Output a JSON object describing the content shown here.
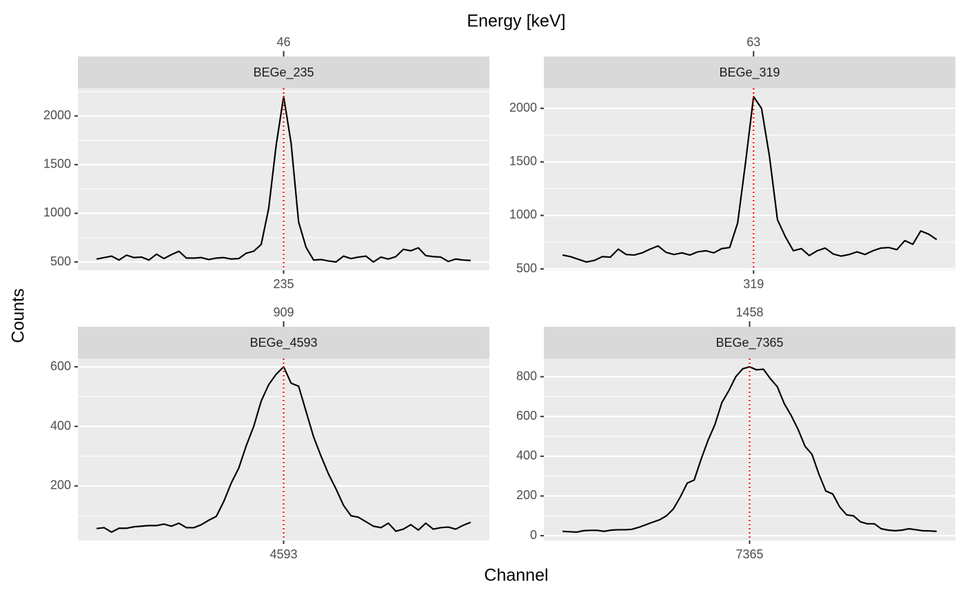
{
  "chart_data": {
    "type": "line",
    "x_label": "Channel",
    "y_label": "Counts",
    "x2_label": "Energy [keV]",
    "grid": true,
    "vline_color": "#ff0000",
    "panels": [
      {
        "title": "BEGe_235",
        "color": "#000000",
        "x": [
          210,
          211,
          212,
          213,
          214,
          215,
          216,
          217,
          218,
          219,
          220,
          221,
          222,
          223,
          224,
          225,
          226,
          227,
          228,
          229,
          230,
          231,
          232,
          233,
          234,
          235,
          236,
          237,
          238,
          239,
          240,
          241,
          242,
          243,
          244,
          245,
          246,
          247,
          248,
          249,
          250,
          251,
          252,
          253,
          254,
          255,
          256,
          257,
          258,
          259,
          260
        ],
        "values": [
          530,
          545,
          560,
          520,
          570,
          545,
          550,
          520,
          580,
          535,
          575,
          610,
          540,
          540,
          545,
          525,
          540,
          545,
          530,
          535,
          590,
          610,
          680,
          1050,
          1700,
          2200,
          1720,
          910,
          650,
          520,
          525,
          510,
          500,
          560,
          535,
          550,
          560,
          500,
          550,
          530,
          555,
          630,
          615,
          645,
          565,
          555,
          550,
          505,
          530,
          520,
          515
        ],
        "xlim": [
          207.5,
          262.5
        ],
        "ylim": [
          415,
          2285
        ],
        "yticks": [
          500,
          1000,
          1500,
          2000
        ],
        "xticks": [
          235
        ],
        "x2ticks": [
          46
        ]
      },
      {
        "title": "BEGe_319",
        "color": "#000000",
        "x": [
          295,
          296,
          297,
          298,
          299,
          300,
          301,
          302,
          303,
          304,
          305,
          306,
          307,
          308,
          309,
          310,
          311,
          312,
          313,
          314,
          315,
          316,
          317,
          318,
          319,
          320,
          321,
          322,
          323,
          324,
          325,
          326,
          327,
          328,
          329,
          330,
          331,
          332,
          333,
          334,
          335,
          336,
          337,
          338,
          339,
          340,
          341,
          342
        ],
        "values": [
          630,
          615,
          590,
          565,
          580,
          615,
          610,
          685,
          635,
          630,
          650,
          685,
          715,
          655,
          635,
          650,
          630,
          660,
          670,
          650,
          690,
          700,
          930,
          1500,
          2110,
          2000,
          1550,
          960,
          800,
          670,
          690,
          625,
          670,
          695,
          640,
          620,
          635,
          660,
          635,
          670,
          695,
          700,
          680,
          765,
          730,
          855,
          825,
          775
        ],
        "xlim": [
          292.65,
          344.35
        ],
        "ylim": [
          488,
          2188
        ],
        "yticks": [
          500,
          1000,
          1500,
          2000
        ],
        "xticks": [
          319
        ],
        "x2ticks": [
          63
        ]
      },
      {
        "title": "BEGe_4593",
        "color": "#000000",
        "x": [
          4568,
          4569,
          4570,
          4571,
          4572,
          4573,
          4574,
          4575,
          4576,
          4577,
          4578,
          4579,
          4580,
          4581,
          4582,
          4583,
          4584,
          4585,
          4586,
          4587,
          4588,
          4589,
          4590,
          4591,
          4592,
          4593,
          4594,
          4595,
          4596,
          4597,
          4598,
          4599,
          4600,
          4601,
          4602,
          4603,
          4604,
          4605,
          4606,
          4607,
          4608,
          4609,
          4610,
          4611,
          4612,
          4613,
          4614,
          4615,
          4616,
          4617,
          4618
        ],
        "values": [
          57,
          60,
          45,
          58,
          58,
          63,
          65,
          67,
          67,
          72,
          65,
          75,
          60,
          60,
          70,
          85,
          98,
          148,
          210,
          260,
          335,
          400,
          485,
          540,
          575,
          600,
          545,
          535,
          450,
          365,
          300,
          240,
          190,
          135,
          100,
          95,
          80,
          65,
          60,
          75,
          48,
          55,
          70,
          52,
          75,
          55,
          60,
          62,
          55,
          68,
          78
        ],
        "xlim": [
          4565.5,
          4620.5
        ],
        "ylim": [
          17,
          628
        ],
        "yticks": [
          200,
          400,
          600
        ],
        "xticks": [
          4593
        ],
        "x2ticks": [
          909
        ]
      },
      {
        "title": "BEGe_7365",
        "color": "#000000",
        "x": [
          7338,
          7339,
          7340,
          7341,
          7342,
          7343,
          7344,
          7345,
          7346,
          7347,
          7348,
          7349,
          7350,
          7351,
          7352,
          7353,
          7354,
          7355,
          7356,
          7357,
          7358,
          7359,
          7360,
          7361,
          7362,
          7363,
          7364,
          7365,
          7366,
          7367,
          7368,
          7369,
          7370,
          7371,
          7372,
          7373,
          7374,
          7375,
          7376,
          7377,
          7378,
          7379,
          7380,
          7381,
          7382,
          7383,
          7384,
          7385,
          7386,
          7387,
          7388,
          7389,
          7390,
          7391,
          7392
        ],
        "values": [
          22,
          20,
          18,
          25,
          27,
          27,
          22,
          28,
          30,
          30,
          32,
          42,
          55,
          68,
          80,
          100,
          135,
          195,
          265,
          280,
          385,
          480,
          560,
          670,
          730,
          800,
          840,
          850,
          835,
          838,
          790,
          750,
          665,
          605,
          535,
          450,
          410,
          310,
          225,
          210,
          145,
          105,
          100,
          70,
          60,
          60,
          35,
          28,
          25,
          28,
          35,
          30,
          25,
          24,
          22
        ],
        "xlim": [
          7335.3,
          7394.7
        ],
        "ylim": [
          -24,
          892
        ],
        "yticks": [
          0,
          200,
          400,
          600,
          800
        ],
        "xticks": [
          7365
        ],
        "x2ticks": [
          1458
        ]
      }
    ]
  }
}
